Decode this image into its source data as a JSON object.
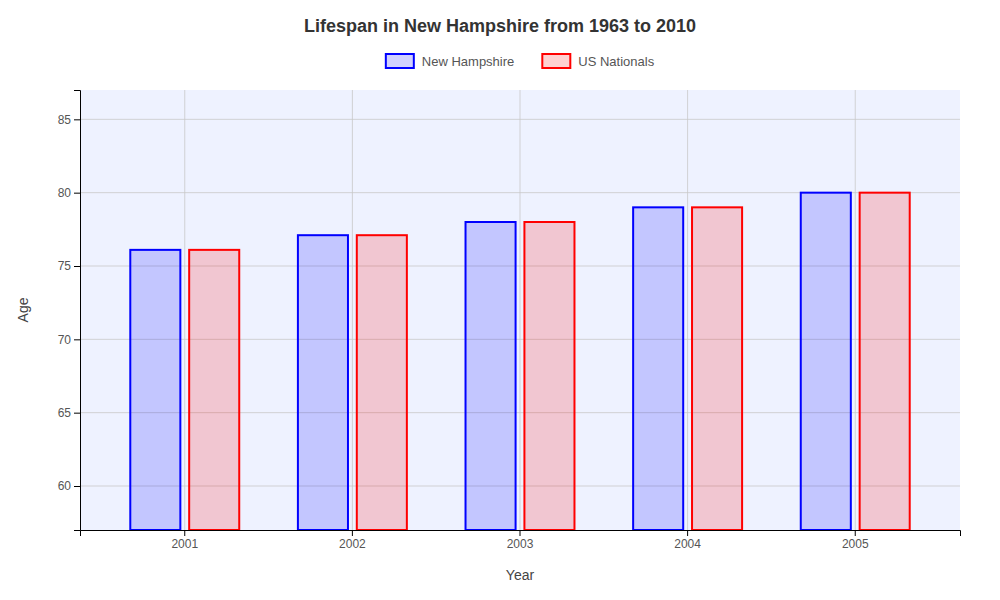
{
  "chart_data": {
    "type": "bar",
    "title": "Lifespan in New Hampshire from 1963 to 2010",
    "xlabel": "Year",
    "ylabel": "Age",
    "categories": [
      "2001",
      "2002",
      "2003",
      "2004",
      "2005"
    ],
    "series": [
      {
        "name": "New Hampshire",
        "color": "#0000ff",
        "values": [
          76.1,
          77.1,
          78.0,
          79.0,
          80.0
        ]
      },
      {
        "name": "US Nationals",
        "color": "#ff0000",
        "values": [
          76.1,
          77.1,
          78.0,
          79.0,
          80.0
        ]
      }
    ],
    "ylim": [
      57,
      87
    ],
    "yticks": [
      60,
      65,
      70,
      75,
      80,
      85
    ],
    "grid": true,
    "legend": "top"
  }
}
